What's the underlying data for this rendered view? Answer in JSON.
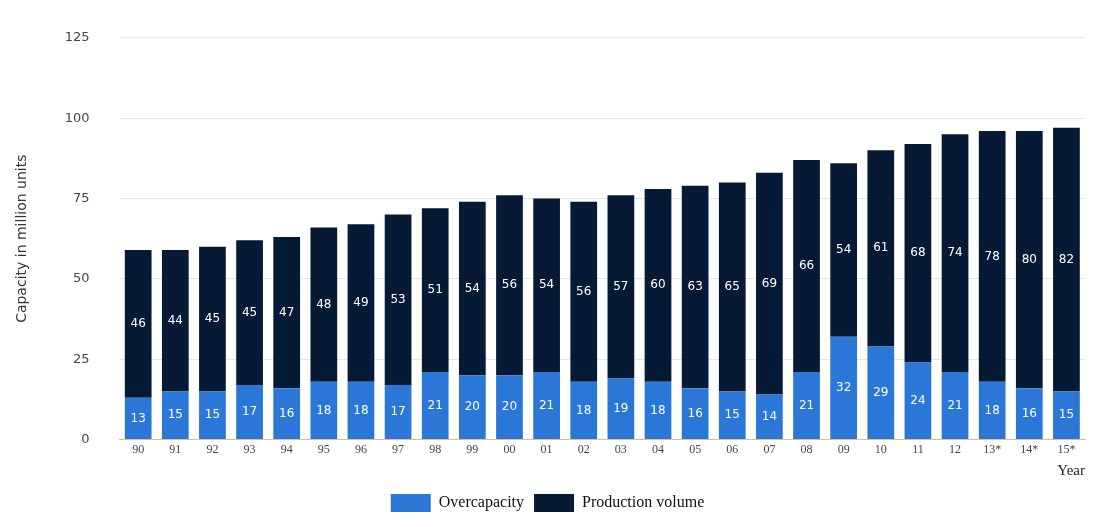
{
  "chart_data": {
    "type": "bar",
    "stacked": true,
    "xlabel": "Year",
    "ylabel": "Capacity in million units",
    "categories": [
      "90",
      "91",
      "92",
      "93",
      "94",
      "95",
      "96",
      "97",
      "98",
      "99",
      "00",
      "01",
      "02",
      "03",
      "04",
      "05",
      "06",
      "07",
      "08",
      "09",
      "10",
      "11",
      "12",
      "13*",
      "14*",
      "15*"
    ],
    "series": [
      {
        "name": "Overcapacity",
        "color": "#2b77d8",
        "values": [
          13,
          15,
          15,
          17,
          16,
          18,
          18,
          17,
          21,
          20,
          20,
          21,
          18,
          19,
          18,
          16,
          15,
          14,
          21,
          32,
          29,
          24,
          21,
          18,
          16,
          15
        ]
      },
      {
        "name": "Production volume",
        "color": "#061a36",
        "values": [
          46,
          44,
          45,
          45,
          47,
          48,
          49,
          53,
          51,
          54,
          56,
          54,
          56,
          57,
          60,
          63,
          65,
          69,
          66,
          54,
          61,
          68,
          74,
          78,
          80,
          82
        ]
      }
    ],
    "ylim": [
      0,
      125
    ],
    "yticks": [
      0,
      25,
      50,
      75,
      100,
      125
    ],
    "grid": "y",
    "legend": "bottom",
    "data_labels": true
  }
}
